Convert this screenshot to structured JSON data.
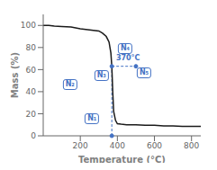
{
  "chart_data": {
    "type": "line",
    "title": "",
    "xlabel": "Temperature (°C)",
    "ylabel": "Mass (%)",
    "x": [
      0,
      30,
      60,
      100,
      150,
      200,
      250,
      300,
      320,
      340,
      355,
      365,
      370,
      375,
      380,
      390,
      400,
      420,
      450,
      500,
      550,
      600,
      650,
      700,
      750,
      800,
      850
    ],
    "values": [
      100,
      100,
      99.5,
      99,
      98.5,
      97,
      96,
      95,
      93,
      90,
      85,
      75,
      63,
      40,
      22,
      14,
      11,
      10.5,
      10,
      10,
      9.5,
      9.5,
      9,
      9,
      8.5,
      8.5,
      8.5
    ],
    "color": "#1a1a1a",
    "xlim": [
      0,
      850
    ],
    "ylim": [
      0,
      110
    ],
    "xticks": [
      200,
      400,
      600,
      800
    ],
    "yticks": [
      0,
      20,
      40,
      60,
      80,
      100
    ],
    "grid": false,
    "annotations": [
      {
        "text": "370°C",
        "x": 370,
        "y": 63,
        "x_end": 500,
        "color": "#4472c4"
      }
    ],
    "labels": [
      {
        "text": "N₁",
        "color": "#4472c4"
      },
      {
        "text": "N₂",
        "color": "#4472c4"
      },
      {
        "text": "N₃",
        "color": "#4472c4"
      },
      {
        "text": "N₄",
        "color": "#4472c4"
      },
      {
        "text": "N₅",
        "color": "#4472c4"
      }
    ]
  }
}
